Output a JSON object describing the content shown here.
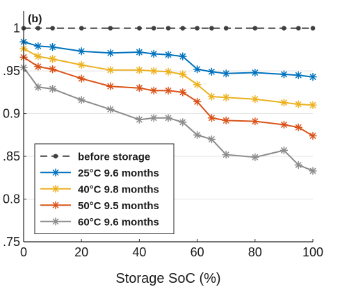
{
  "chart_data": {
    "type": "line",
    "title": "",
    "panel_label": "(b)",
    "xlabel": "Storage SoC (%)",
    "ylabel": "",
    "xlim": [
      0,
      100
    ],
    "ylim": [
      0.75,
      1.02
    ],
    "x_ticks": [
      0,
      20,
      40,
      60,
      80,
      100
    ],
    "y_ticks": [
      0.75,
      0.8,
      0.85,
      0.9,
      0.95,
      1
    ],
    "x_tick_labels": [
      "0",
      "20",
      "40",
      "60",
      "80",
      "100"
    ],
    "y_tick_labels": [
      ".75",
      "0.8",
      ".85",
      "0.9",
      ".95",
      "1"
    ],
    "grid": "horizontal",
    "legend_position": "bottom-left",
    "series": [
      {
        "name": "before storage",
        "color": "#404040",
        "marker": "dot",
        "dashed": true,
        "x": [
          0,
          5,
          10,
          20,
          30,
          40,
          45,
          50,
          55,
          60,
          65,
          70,
          80,
          90,
          95,
          100
        ],
        "y": [
          1,
          1,
          1,
          1,
          1,
          1,
          1,
          1,
          1,
          1,
          1,
          1,
          1,
          1,
          1,
          1
        ]
      },
      {
        "name": "25°C  9.6 months",
        "color": "#0072BD",
        "marker": "asterisk",
        "dashed": false,
        "x": [
          0,
          5,
          10,
          20,
          30,
          40,
          45,
          50,
          55,
          60,
          65,
          70,
          80,
          90,
          95,
          100
        ],
        "y": [
          0.984,
          0.979,
          0.978,
          0.973,
          0.971,
          0.972,
          0.97,
          0.969,
          0.967,
          0.952,
          0.949,
          0.947,
          0.948,
          0.946,
          0.945,
          0.943
        ]
      },
      {
        "name": "40°C  9.8 months",
        "color": "#EDB120",
        "marker": "asterisk",
        "dashed": false,
        "x": [
          0,
          5,
          10,
          20,
          30,
          40,
          45,
          50,
          55,
          60,
          65,
          70,
          80,
          90,
          95,
          100
        ],
        "y": [
          0.976,
          0.967,
          0.964,
          0.957,
          0.951,
          0.951,
          0.95,
          0.949,
          0.946,
          0.934,
          0.92,
          0.919,
          0.917,
          0.913,
          0.911,
          0.91
        ]
      },
      {
        "name": "50°C  9.5 months",
        "color": "#D95319",
        "marker": "asterisk",
        "dashed": false,
        "x": [
          0,
          5,
          10,
          20,
          30,
          40,
          45,
          50,
          55,
          60,
          65,
          70,
          80,
          90,
          95,
          100
        ],
        "y": [
          0.966,
          0.955,
          0.952,
          0.941,
          0.932,
          0.93,
          0.927,
          0.927,
          0.925,
          0.914,
          0.895,
          0.892,
          0.891,
          0.887,
          0.884,
          0.874
        ]
      },
      {
        "name": "60°C  9.6 months",
        "color": "#8C8C8C",
        "marker": "asterisk",
        "dashed": false,
        "x": [
          0,
          5,
          10,
          20,
          30,
          40,
          45,
          50,
          55,
          60,
          65,
          70,
          80,
          90,
          95,
          100
        ],
        "y": [
          0.954,
          0.931,
          0.929,
          0.916,
          0.905,
          0.893,
          0.895,
          0.895,
          0.89,
          0.875,
          0.87,
          0.852,
          0.849,
          0.857,
          0.84,
          0.833
        ]
      }
    ]
  }
}
